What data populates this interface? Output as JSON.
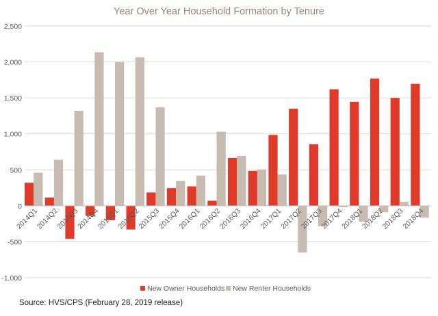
{
  "source": "Source:  HVS/CPS (February 28, 2019 release)",
  "chart_data": {
    "type": "bar",
    "title": "Year Over Year Household Formation by Tenure",
    "xlabel": "",
    "ylabel": "",
    "ylim": [
      -1000,
      2500
    ],
    "yticks": [
      -1000,
      -500,
      0,
      500,
      1000,
      1500,
      2000,
      2500
    ],
    "ytick_labels": [
      "-1,000",
      "-500",
      "0",
      "500",
      "1,000",
      "1,500",
      "2,000",
      "2,500"
    ],
    "grid": true,
    "legend_position": "bottom",
    "categories": [
      "2014Q1",
      "2014Q2",
      "2014Q3",
      "2014Q4",
      "2015Q1",
      "2015Q2",
      "2015Q3",
      "2015Q4",
      "2016Q1",
      "2016Q2",
      "2016Q3",
      "2016Q4",
      "2017Q1",
      "2017Q2",
      "2017Q3",
      "2017Q4",
      "2018Q1",
      "2018Q2",
      "2018Q3",
      "2018Q4"
    ],
    "series": [
      {
        "name": "New Owner Households",
        "color": "#e03a2a",
        "values": [
          320,
          115,
          -460,
          -140,
          -200,
          -330,
          185,
          245,
          270,
          70,
          665,
          485,
          985,
          1350,
          855,
          1620,
          1445,
          1770,
          1500,
          1695
        ]
      },
      {
        "name": "New Renter Households",
        "color": "#c8bbaf",
        "values": [
          460,
          640,
          1320,
          2135,
          2000,
          2065,
          1370,
          345,
          420,
          1030,
          695,
          505,
          435,
          -650,
          -285,
          -20,
          -220,
          -90,
          55,
          -165
        ]
      }
    ]
  }
}
